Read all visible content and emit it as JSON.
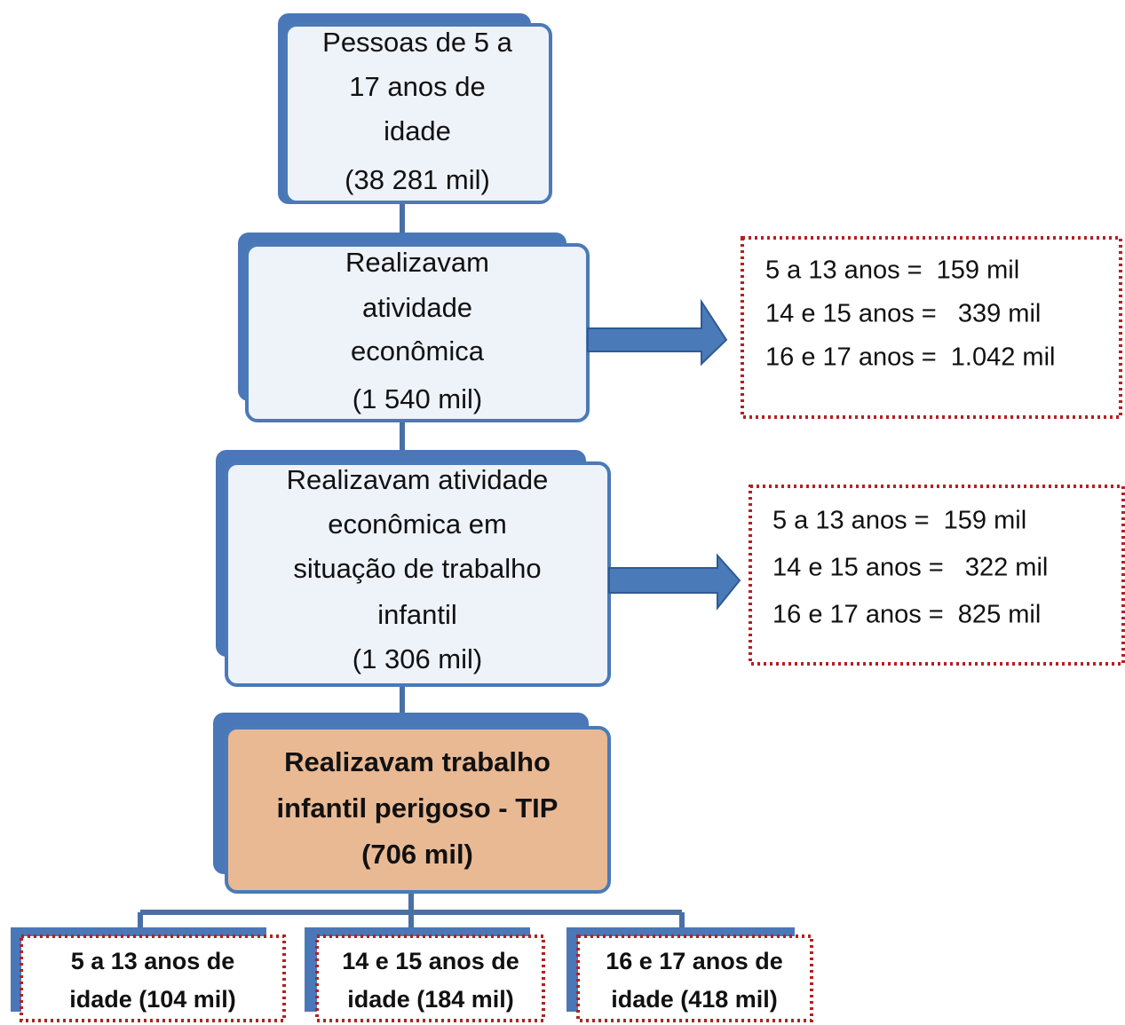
{
  "nodes": [
    {
      "lines": [
        "Pessoas de 5 a",
        "17 anos de",
        "idade",
        "(38 281 mil)"
      ]
    },
    {
      "lines": [
        "Realizavam",
        "atividade",
        "econômica",
        "(1 540 mil)"
      ]
    },
    {
      "lines": [
        "Realizavam atividade",
        "econômica em",
        "situação de trabalho",
        "infantil",
        "(1 306 mil)"
      ]
    },
    {
      "lines": [
        "Realizavam trabalho",
        "infantil perigoso - TIP",
        "(706 mil)"
      ]
    }
  ],
  "side_boxes": [
    {
      "lines": [
        "5 a 13 anos =  159 mil",
        "14 e 15 anos =   339 mil",
        "16 e 17 anos =  1.042 mil"
      ]
    },
    {
      "lines": [
        "5 a 13 anos =  159 mil",
        "14 e 15 anos =   322 mil",
        "16 e 17 anos =  825 mil"
      ]
    }
  ],
  "age_groups": [
    {
      "lines": [
        "5 a 13 anos de",
        "idade (104 mil)"
      ]
    },
    {
      "lines": [
        "14 e 15 anos de",
        "idade (184 mil)"
      ]
    },
    {
      "lines": [
        "16 e 17 anos de",
        "idade (418 mil)"
      ]
    }
  ]
}
